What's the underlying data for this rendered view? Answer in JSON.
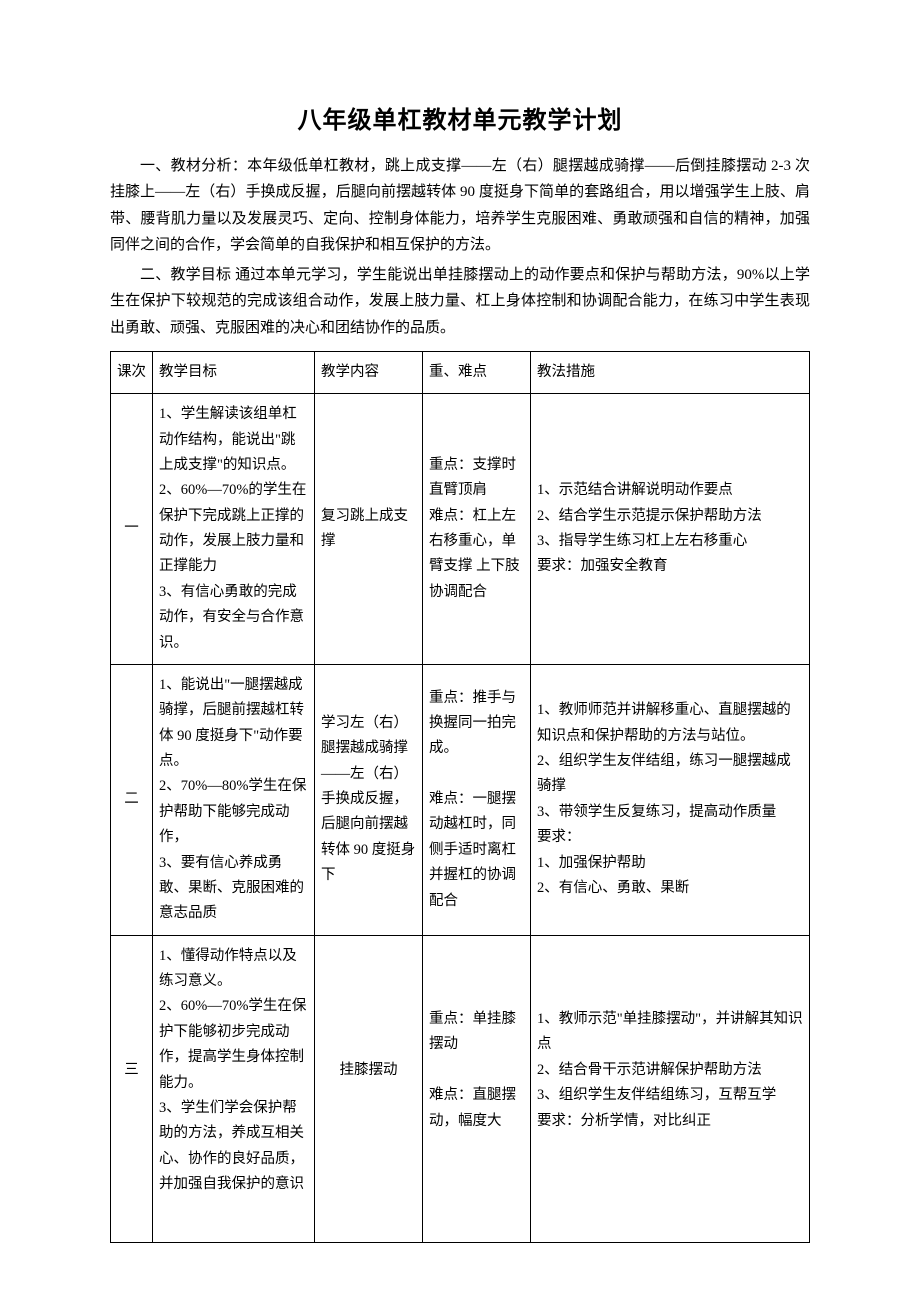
{
  "title": "八年级单杠教材单元教学计划",
  "paragraphs": {
    "p1": "一、教材分析：本年级低单杠教材，跳上成支撑——左（右）腿摆越成骑撑——后倒挂膝摆动 2-3 次挂膝上——左（右）手换成反握，后腿向前摆越转体 90 度挺身下简单的套路组合，用以增强学生上肢、肩带、腰背肌力量以及发展灵巧、定向、控制身体能力，培养学生克服困难、勇敢顽强和自信的精神，加强同伴之间的合作，学会简单的自我保护和相互保护的方法。",
    "p2": "二、教学目标 通过本单元学习，学生能说出单挂膝摆动上的动作要点和保护与帮助方法，90%以上学生在保护下较规范的完成该组合动作，发展上肢力量、杠上身体控制和协调配合能力，在练习中学生表现出勇敢、顽强、克服困难的决心和团结协作的品质。"
  },
  "table": {
    "headers": {
      "num": "课次",
      "goal": "教学目标",
      "content": "教学内容",
      "points": "重、难点",
      "methods": "教法措施"
    },
    "rows": [
      {
        "num": "一",
        "goal": "1、学生解读该组单杠动作结构，能说出\"跳上成支撑\"的知识点。\n2、60%—70%的学生在保护下完成跳上正撑的动作，发展上肢力量和正撑能力\n3、有信心勇敢的完成动作，有安全与合作意识。",
        "content": "复习跳上成支撑",
        "points": "重点：支撑时直臂顶肩\n难点：杠上左右移重心，单臂支撑  上下肢协调配合",
        "methods": "1、示范结合讲解说明动作要点\n2、结合学生示范提示保护帮助方法\n3、指导学生练习杠上左右移重心\n要求：加强安全教育"
      },
      {
        "num": "二",
        "goal": "1、能说出\"一腿摆越成骑撑，后腿前摆越杠转体 90 度挺身下\"动作要点。\n2、70%—80%学生在保护帮助下能够完成动作，\n3、要有信心养成勇敢、果断、克服困难的意志品质",
        "content": "学习左（右）腿摆越成骑撑——左（右）手换成反握，后腿向前摆越转体 90 度挺身下",
        "points": "重点：推手与换握同一拍完成。\n\n难点：一腿摆动越杠时，同侧手适时离杠并握杠的协调配合",
        "methods": "1、教师师范并讲解移重心、直腿摆越的知识点和保护帮助的方法与站位。\n2、组织学生友伴结组，练习一腿摆越成骑撑\n3、带领学生反复练习，提高动作质量\n要求：\n1、加强保护帮助\n2、有信心、勇敢、果断"
      },
      {
        "num": "三",
        "goal": "1、懂得动作特点以及练习意义。\n2、60%—70%学生在保护下能够初步完成动作，提高学生身体控制能力。\n3、学生们学会保护帮助的方法，养成互相关心、协作的良好品质，并加强自我保护的意识",
        "content": "挂膝摆动",
        "points": "重点：单挂膝摆动\n\n难点：直腿摆动，幅度大",
        "methods": "1、教师示范\"单挂膝摆动\"，并讲解其知识点\n2、结合骨干示范讲解保护帮助方法\n3、组织学生友伴结组练习，互帮互学\n要求：分析学情，对比纠正"
      }
    ]
  },
  "styles": {
    "title_fontsize": 24,
    "body_fontsize": 15,
    "table_fontsize": 14.5,
    "text_color": "#000000",
    "background_color": "#ffffff",
    "border_color": "#000000",
    "line_height": 1.75
  }
}
